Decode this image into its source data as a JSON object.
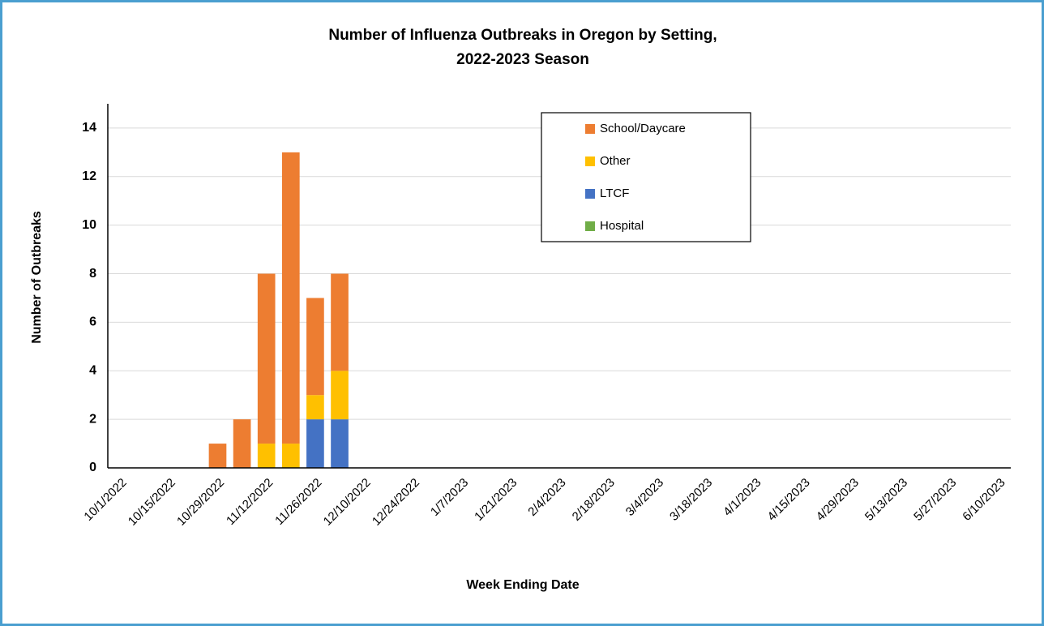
{
  "chart_data": {
    "type": "stacked_bar",
    "title": [
      "Number of Influenza Outbreaks in Oregon by Setting,",
      "2022-2023 Season"
    ],
    "x_label": "Week Ending Date",
    "y_label": "Number of Outbreaks",
    "categories": [
      "10/1/2022",
      null,
      "10/15/2022",
      null,
      "10/29/2022",
      null,
      "11/12/2022",
      null,
      "11/26/2022",
      null,
      "12/10/2022",
      null,
      "12/24/2022",
      null,
      "1/7/2023",
      null,
      "1/21/2023",
      null,
      "2/4/2023",
      null,
      "2/18/2023",
      null,
      "3/4/2023",
      null,
      "3/18/2023",
      null,
      "4/1/2023",
      null,
      "4/15/2023",
      null,
      "4/29/2023",
      null,
      "5/13/2023",
      null,
      "5/27/2023",
      null,
      "6/10/2023"
    ],
    "series": [
      {
        "name": "School/Daycare",
        "color": "#ed7d31",
        "values": [
          0,
          0,
          0,
          0,
          1,
          2,
          7,
          12,
          4,
          4,
          0,
          0,
          0,
          0,
          0,
          0,
          0,
          0,
          0,
          0,
          0,
          0,
          0,
          0,
          0,
          0,
          0,
          0,
          0,
          0,
          0,
          0,
          0,
          0,
          0,
          0,
          0
        ]
      },
      {
        "name": "Other",
        "color": "#ffc000",
        "values": [
          0,
          0,
          0,
          0,
          0,
          0,
          1,
          1,
          1,
          2,
          0,
          0,
          0,
          0,
          0,
          0,
          0,
          0,
          0,
          0,
          0,
          0,
          0,
          0,
          0,
          0,
          0,
          0,
          0,
          0,
          0,
          0,
          0,
          0,
          0,
          0,
          0
        ]
      },
      {
        "name": "LTCF",
        "color": "#4472c4",
        "values": [
          0,
          0,
          0,
          0,
          0,
          0,
          0,
          0,
          2,
          2,
          0,
          0,
          0,
          0,
          0,
          0,
          0,
          0,
          0,
          0,
          0,
          0,
          0,
          0,
          0,
          0,
          0,
          0,
          0,
          0,
          0,
          0,
          0,
          0,
          0,
          0,
          0
        ]
      },
      {
        "name": "Hospital",
        "color": "#70ad47",
        "values": [
          0,
          0,
          0,
          0,
          0,
          0,
          0,
          0,
          0,
          0,
          0,
          0,
          0,
          0,
          0,
          0,
          0,
          0,
          0,
          0,
          0,
          0,
          0,
          0,
          0,
          0,
          0,
          0,
          0,
          0,
          0,
          0,
          0,
          0,
          0,
          0,
          0
        ]
      }
    ],
    "ylim": [
      0,
      15
    ],
    "yticks": [
      0,
      2,
      4,
      6,
      8,
      10,
      12,
      14
    ],
    "grid": true
  }
}
